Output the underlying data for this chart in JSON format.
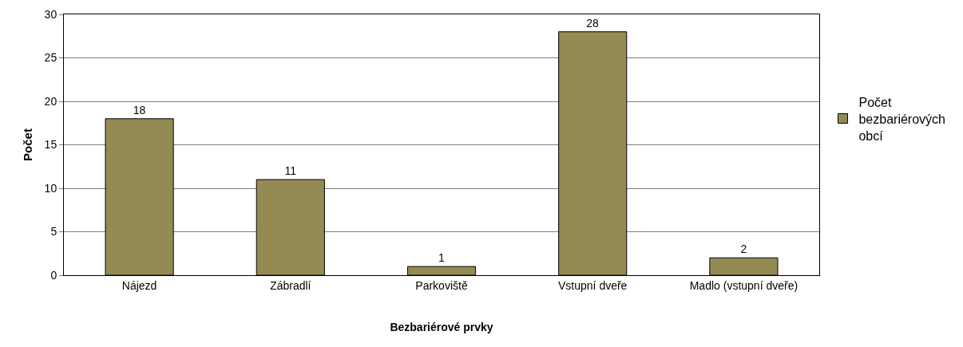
{
  "chart_data": {
    "type": "bar",
    "xlabel": "Bezbariérové prvky",
    "ylabel": "Počet",
    "categories": [
      "Nájezd",
      "Zábradlí",
      "Parkoviště",
      "Vstupní dveře",
      "Madlo (vstupní dveře)"
    ],
    "series": [
      {
        "name": "Počet bezbariérových obcí",
        "color": "#948a54",
        "values": [
          18,
          11,
          1,
          28,
          2
        ]
      }
    ],
    "ylim": [
      0,
      30
    ],
    "yticks": [
      0,
      5,
      10,
      15,
      20,
      25,
      30
    ],
    "grid": "y",
    "legend": "right",
    "data_labels": true
  }
}
